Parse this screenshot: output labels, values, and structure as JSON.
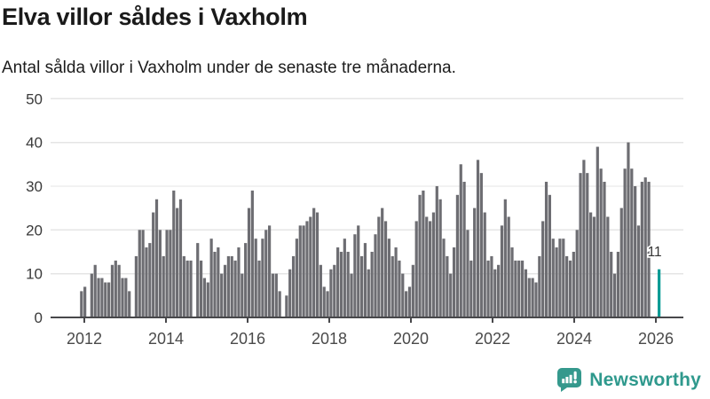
{
  "header": {
    "title": "Elva villor såldes i Vaxholm",
    "subtitle": "Antal sålda villor i Vaxholm under de senaste tre månaderna."
  },
  "annotation": {
    "label": "11"
  },
  "branding": {
    "name": "Newsworthy",
    "icon": "newsworthy-logo-icon"
  },
  "colors": {
    "bar": "#6d6d72",
    "highlight": "#009a94",
    "grid": "#e5e5e5",
    "axis": "#48484b",
    "y_label": "#3a3a3a",
    "x_label": "#4a4a4a",
    "annotation_text": "#333333",
    "brand": "#2f998d"
  },
  "chart_data": {
    "type": "bar",
    "title": "Elva villor såldes i Vaxholm",
    "subtitle": "Antal sålda villor i Vaxholm under de senaste tre månaderna.",
    "granularity": "monthly",
    "x_tick_labels": [
      "2012",
      "2014",
      "2016",
      "2018",
      "2020",
      "2022",
      "2024",
      "2026"
    ],
    "y_ticks": [
      0,
      10,
      20,
      30,
      40,
      50
    ],
    "ylim": [
      0,
      50
    ],
    "grid": true,
    "legend": false,
    "values": [
      6,
      7,
      0,
      10,
      12,
      9,
      9,
      8,
      8,
      12,
      13,
      12,
      9,
      9,
      6,
      0,
      14,
      20,
      20,
      16,
      17,
      24,
      27,
      20,
      14,
      20,
      20,
      29,
      25,
      27,
      14,
      13,
      13,
      0,
      17,
      13,
      9,
      8,
      18,
      15,
      16,
      10,
      12,
      14,
      14,
      13,
      16,
      10,
      17,
      25,
      29,
      18,
      13,
      18,
      20,
      21,
      10,
      10,
      6,
      0,
      5,
      11,
      14,
      18,
      21,
      21,
      22,
      23,
      25,
      24,
      12,
      7,
      6,
      11,
      12,
      16,
      15,
      18,
      15,
      10,
      19,
      21,
      14,
      17,
      11,
      15,
      19,
      23,
      25,
      22,
      18,
      14,
      16,
      13,
      10,
      6,
      7,
      12,
      22,
      28,
      29,
      23,
      22,
      24,
      30,
      27,
      18,
      14,
      10,
      16,
      28,
      35,
      31,
      20,
      13,
      25,
      36,
      33,
      24,
      13,
      14,
      11,
      12,
      21,
      27,
      23,
      16,
      13,
      13,
      13,
      11,
      9,
      9,
      8,
      14,
      22,
      31,
      28,
      18,
      16,
      18,
      18,
      14,
      13,
      15,
      20,
      33,
      36,
      33,
      24,
      23,
      39,
      34,
      31,
      23,
      15,
      10,
      15,
      25,
      34,
      40,
      34,
      30,
      21,
      31,
      32,
      31,
      0,
      0,
      11
    ],
    "highlight_index": 169,
    "highlight_value": 11,
    "highlight_label": "11"
  }
}
